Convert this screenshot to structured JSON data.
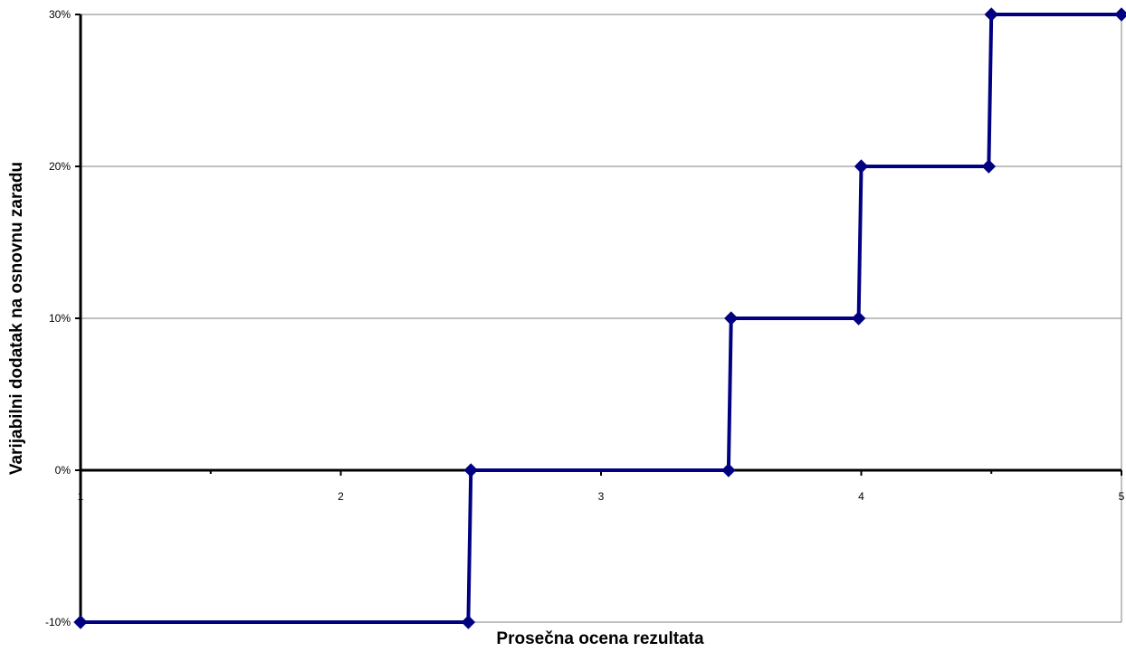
{
  "chart_data": {
    "type": "line",
    "step": true,
    "title": "",
    "xlabel": "Prosečna ocena rezultata",
    "ylabel": "Varijabilni dodatak na osnovnu zaradu",
    "xlim": [
      1,
      5
    ],
    "ylim": [
      -10,
      30
    ],
    "x_major_ticks": [
      1,
      2,
      3,
      4,
      5
    ],
    "x_minor_ticks": [
      1.5,
      2.5,
      3.5,
      4.5
    ],
    "x_tick_labels": [
      "1",
      "2",
      "3",
      "4",
      "5"
    ],
    "y_ticks": [
      -10,
      0,
      10,
      20,
      30
    ],
    "y_tick_labels": [
      "-10%",
      "0%",
      "10%",
      "20%",
      "30%"
    ],
    "grid": "horizontal",
    "legend": "none",
    "series": [
      {
        "x": [
          1.0,
          2.49,
          2.5,
          3.49,
          3.5,
          3.99,
          4.0,
          4.49,
          4.5,
          5.0
        ],
        "y": [
          -10,
          -10,
          0,
          0,
          10,
          10,
          20,
          20,
          30,
          30
        ],
        "color": "#000080",
        "marker": "diamond"
      }
    ]
  }
}
